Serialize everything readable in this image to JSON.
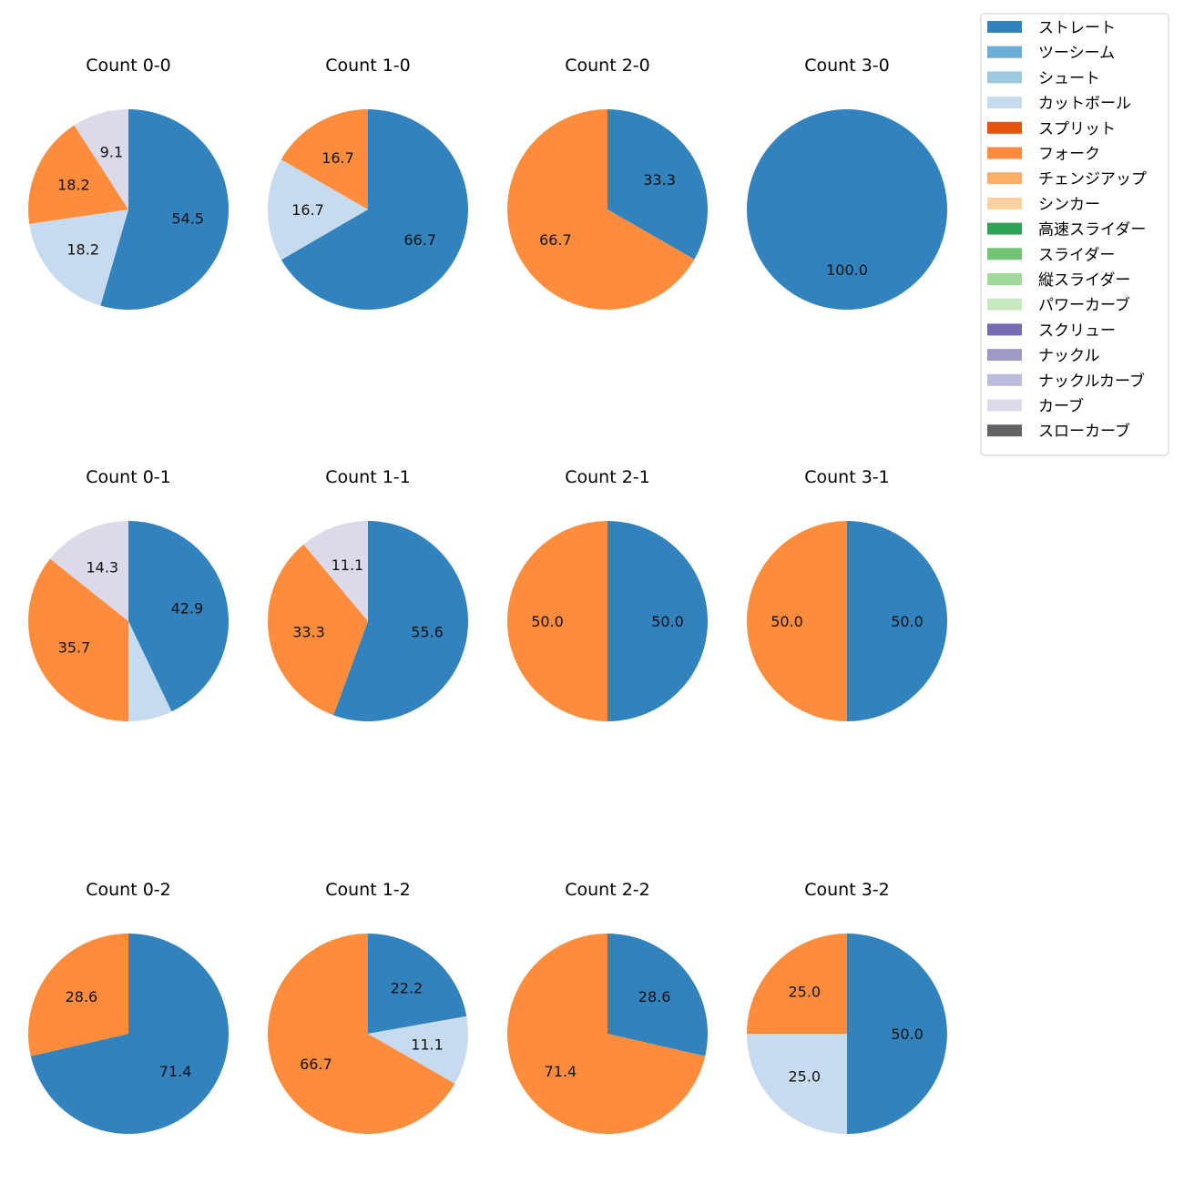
{
  "chart_data": {
    "type": "pie",
    "categories": [
      "ストレート",
      "ツーシーム",
      "シュート",
      "カットボール",
      "スプリット",
      "フォーク",
      "チェンジアップ",
      "シンカー",
      "高速スライダー",
      "スライダー",
      "縦スライダー",
      "パワーカーブ",
      "スクリュー",
      "ナックル",
      "ナックルカーブ",
      "カーブ",
      "スローカーブ"
    ],
    "colors": [
      "#3182bd",
      "#6baed6",
      "#9ecae1",
      "#c6dbef",
      "#e6550d",
      "#fd8d3c",
      "#fdae6b",
      "#fdd0a2",
      "#31a354",
      "#74c476",
      "#a1d99b",
      "#c7e9c0",
      "#756bb1",
      "#9e9ac8",
      "#bcbddc",
      "#dadaeb",
      "#636363"
    ],
    "legend_position": "top-right",
    "charts": [
      {
        "title": "Count 0-0",
        "slices": [
          {
            "category": "ストレート",
            "value": 54.5,
            "label": "54.5"
          },
          {
            "category": "カットボール",
            "value": 18.2,
            "label": "18.2"
          },
          {
            "category": "フォーク",
            "value": 18.2,
            "label": "18.2"
          },
          {
            "category": "カーブ",
            "value": 9.1,
            "label": "9.1"
          }
        ]
      },
      {
        "title": "Count 1-0",
        "slices": [
          {
            "category": "ストレート",
            "value": 66.7,
            "label": "66.7"
          },
          {
            "category": "カットボール",
            "value": 16.7,
            "label": "16.7"
          },
          {
            "category": "フォーク",
            "value": 16.7,
            "label": "16.7"
          }
        ]
      },
      {
        "title": "Count 2-0",
        "slices": [
          {
            "category": "ストレート",
            "value": 33.3,
            "label": "33.3"
          },
          {
            "category": "フォーク",
            "value": 66.7,
            "label": "66.7"
          }
        ]
      },
      {
        "title": "Count 3-0",
        "slices": [
          {
            "category": "ストレート",
            "value": 100.0,
            "label": "100.0"
          }
        ]
      },
      {
        "title": "Count 0-1",
        "slices": [
          {
            "category": "ストレート",
            "value": 42.9,
            "label": "42.9"
          },
          {
            "category": "カットボール",
            "value": 7.1,
            "label": ""
          },
          {
            "category": "フォーク",
            "value": 35.7,
            "label": "35.7"
          },
          {
            "category": "カーブ",
            "value": 14.3,
            "label": "14.3"
          }
        ]
      },
      {
        "title": "Count 1-1",
        "slices": [
          {
            "category": "ストレート",
            "value": 55.6,
            "label": "55.6"
          },
          {
            "category": "フォーク",
            "value": 33.3,
            "label": "33.3"
          },
          {
            "category": "カーブ",
            "value": 11.1,
            "label": "11.1"
          }
        ]
      },
      {
        "title": "Count 2-1",
        "slices": [
          {
            "category": "ストレート",
            "value": 50.0,
            "label": "50.0"
          },
          {
            "category": "フォーク",
            "value": 50.0,
            "label": "50.0"
          }
        ]
      },
      {
        "title": "Count 3-1",
        "slices": [
          {
            "category": "ストレート",
            "value": 50.0,
            "label": "50.0"
          },
          {
            "category": "フォーク",
            "value": 50.0,
            "label": "50.0"
          }
        ]
      },
      {
        "title": "Count 0-2",
        "slices": [
          {
            "category": "ストレート",
            "value": 71.4,
            "label": "71.4"
          },
          {
            "category": "フォーク",
            "value": 28.6,
            "label": "28.6"
          }
        ]
      },
      {
        "title": "Count 1-2",
        "slices": [
          {
            "category": "ストレート",
            "value": 22.2,
            "label": "22.2"
          },
          {
            "category": "カットボール",
            "value": 11.1,
            "label": "11.1"
          },
          {
            "category": "フォーク",
            "value": 66.7,
            "label": "66.7"
          }
        ]
      },
      {
        "title": "Count 2-2",
        "slices": [
          {
            "category": "ストレート",
            "value": 28.6,
            "label": "28.6"
          },
          {
            "category": "フォーク",
            "value": 71.4,
            "label": "71.4"
          }
        ]
      },
      {
        "title": "Count 3-2",
        "slices": [
          {
            "category": "ストレート",
            "value": 50.0,
            "label": "50.0"
          },
          {
            "category": "カットボール",
            "value": 25.0,
            "label": "25.0"
          },
          {
            "category": "フォーク",
            "value": 25.0,
            "label": "25.0"
          }
        ]
      }
    ]
  }
}
